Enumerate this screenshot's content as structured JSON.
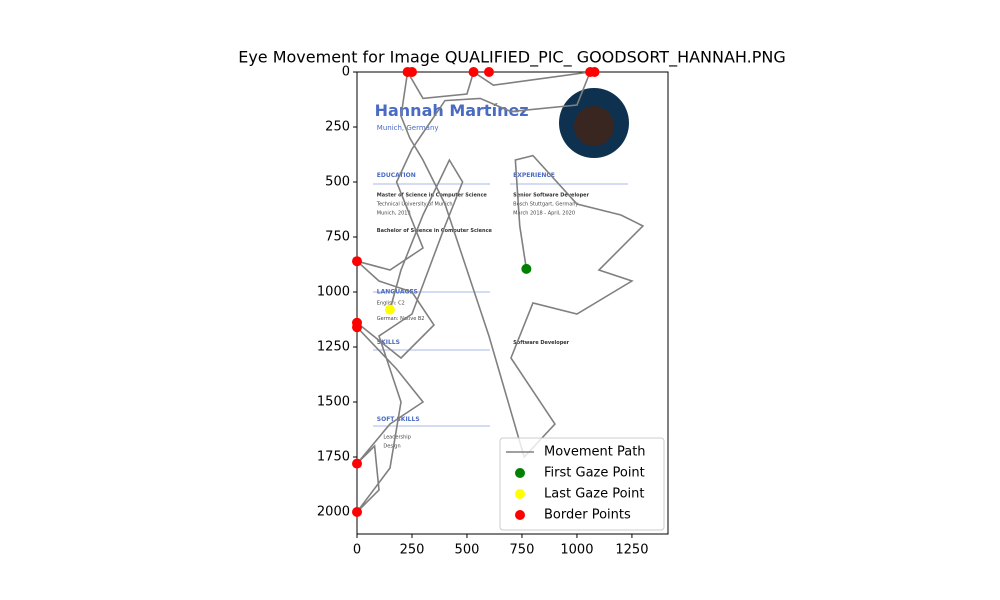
{
  "chart_data": {
    "type": "line",
    "title": "Eye Movement for Image QUALIFIED_PIC_ GOODSORT_HANNAH.PNG",
    "xlim": [
      0,
      1414
    ],
    "ylim": [
      2100,
      0
    ],
    "xticks": [
      0,
      250,
      500,
      750,
      1000,
      1250
    ],
    "yticks": [
      0,
      250,
      500,
      750,
      1000,
      1250,
      1500,
      1750,
      2000
    ],
    "legend": "lower right",
    "series": [
      {
        "name": "Movement Path",
        "color": "#808080",
        "mode": "line",
        "x": [
          770,
          740,
          720,
          800,
          1000,
          1200,
          1300,
          1100,
          1250,
          1000,
          800,
          700,
          900,
          760,
          600,
          500,
          400,
          300,
          240,
          200,
          230,
          300,
          500,
          530,
          620,
          1060,
          1000,
          700,
          560,
          400,
          250,
          180,
          300,
          150,
          0,
          100,
          250,
          350,
          200,
          0,
          0,
          180,
          300,
          150,
          0,
          80,
          100,
          0,
          150,
          200,
          100,
          250,
          400,
          480,
          420,
          300,
          200,
          150
        ],
        "y": [
          895,
          700,
          400,
          380,
          600,
          650,
          700,
          900,
          950,
          1100,
          1050,
          1300,
          1600,
          1750,
          1200,
          900,
          600,
          400,
          300,
          200,
          0,
          120,
          100,
          0,
          60,
          0,
          150,
          180,
          120,
          130,
          350,
          500,
          800,
          900,
          860,
          950,
          1000,
          1150,
          1300,
          1140,
          1160,
          1350,
          1500,
          1600,
          1780,
          1700,
          1900,
          2000,
          1800,
          1500,
          1200,
          1100,
          700,
          500,
          400,
          650,
          900,
          1080
        ]
      },
      {
        "name": "First Gaze Point",
        "color": "#008000",
        "mode": "markers",
        "x": [
          770
        ],
        "y": [
          895
        ]
      },
      {
        "name": "Last Gaze Point",
        "color": "#ffff00",
        "mode": "markers",
        "x": [
          150
        ],
        "y": [
          1080
        ]
      },
      {
        "name": "Border Points",
        "color": "#ff0000",
        "mode": "markers",
        "x": [
          0,
          0,
          0,
          0,
          0,
          230,
          250,
          530,
          600,
          1060,
          1080
        ],
        "y": [
          860,
          1140,
          1160,
          1780,
          2000,
          0,
          0,
          0,
          0,
          0,
          0
        ]
      }
    ]
  },
  "image": {
    "texts": [
      "Hannah Martínez",
      "Munich, Germany",
      "EDUCATION",
      "Master of Science in Computer Science",
      "Technical University of Munich",
      "Munich, 2013",
      "Bachelor of Science in Computer Science",
      "LANGUAGES",
      "English: C2",
      "German: Native B2",
      "SKILLS",
      "SOFT SKILLS",
      "Leadership",
      "Design",
      "EXPERIENCE",
      "Senior Software Developer",
      "Bosch Stuttgart, Germany",
      "March 2018 - April, 2020",
      "Software Developer"
    ]
  }
}
